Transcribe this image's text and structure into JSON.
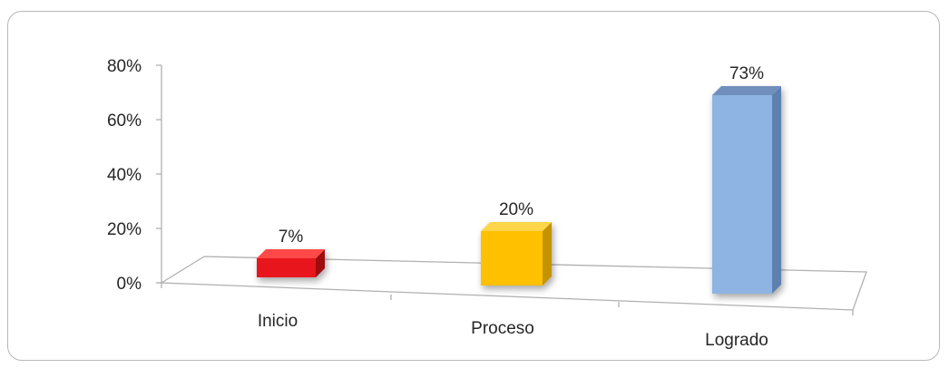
{
  "chart_data": {
    "type": "bar",
    "title": "",
    "xlabel": "",
    "ylabel": "",
    "categories": [
      "Inicio",
      "Proceso",
      "Logrado"
    ],
    "values": [
      7,
      20,
      73
    ],
    "data_labels": [
      "7%",
      "20%",
      "73%"
    ],
    "y_ticks": [
      "0%",
      "20%",
      "40%",
      "60%",
      "80%"
    ],
    "ylim": [
      0,
      80
    ],
    "three_d": true,
    "grid": false,
    "legend": "none",
    "bar_colors": [
      "#e8141b",
      "#ffc000",
      "#8db4e2"
    ],
    "bar_side_colors": [
      "#9e0c0f",
      "#c49300",
      "#5d80ae"
    ],
    "bar_top_colors": [
      "#ff4a4a",
      "#ffd54a",
      "#6f8fbd"
    ]
  }
}
